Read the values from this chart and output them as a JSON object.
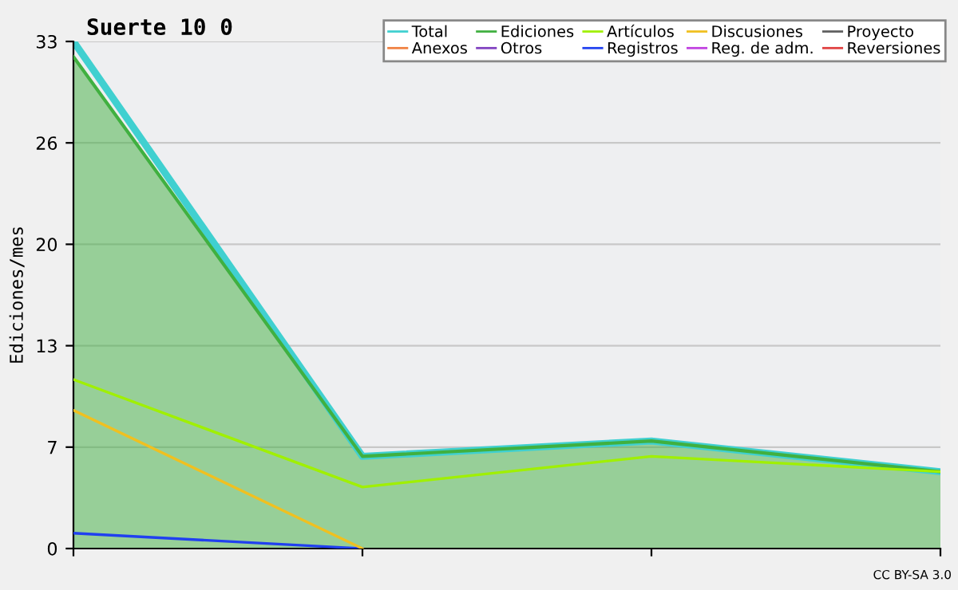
{
  "chart_data": {
    "type": "line",
    "title": "Suerte 10 0",
    "ylabel": "Ediciones/mes",
    "categories": [
      null,
      null,
      null,
      null
    ],
    "series": [
      {
        "name": "Total",
        "color": "#40d0d0",
        "values": [
          33,
          6,
          7,
          5
        ]
      },
      {
        "name": "Anexos",
        "color": "#f08040",
        "values": [
          null,
          null,
          null,
          null
        ]
      },
      {
        "name": "Ediciones",
        "type": "area",
        "color": "#40b040",
        "values": [
          32,
          6,
          7,
          5
        ]
      },
      {
        "name": "Otros",
        "color": "#8040c0",
        "values": [
          null,
          null,
          null,
          null
        ]
      },
      {
        "name": "Artículos",
        "color": "#a0f000",
        "values": [
          11,
          4,
          6,
          5
        ]
      },
      {
        "name": "Registros",
        "color": "#2040f0",
        "values": [
          1,
          0,
          null,
          null
        ]
      },
      {
        "name": "Discusiones",
        "color": "#f0c020",
        "values": [
          9,
          0,
          null,
          null
        ]
      },
      {
        "name": "Reg. de adm.",
        "color": "#c040e0",
        "values": [
          null,
          null,
          null,
          null
        ]
      },
      {
        "name": "Proyecto",
        "color": "#606060",
        "values": [
          null,
          null,
          null,
          null
        ]
      },
      {
        "name": "Reversiones",
        "color": "#e04040",
        "values": [
          null,
          null,
          null,
          null
        ]
      }
    ],
    "ylim": [
      0,
      33
    ],
    "yticks": [
      0,
      {
        "value": 6.6,
        "label": "7"
      },
      {
        "value": 13.2,
        "label": "13"
      },
      {
        "value": 19.8,
        "label": "20"
      },
      {
        "value": 26.4,
        "label": "26"
      },
      33
    ],
    "grid": "y",
    "legend": "top right",
    "annotations": [
      "CC BY-SA 3.0"
    ]
  }
}
